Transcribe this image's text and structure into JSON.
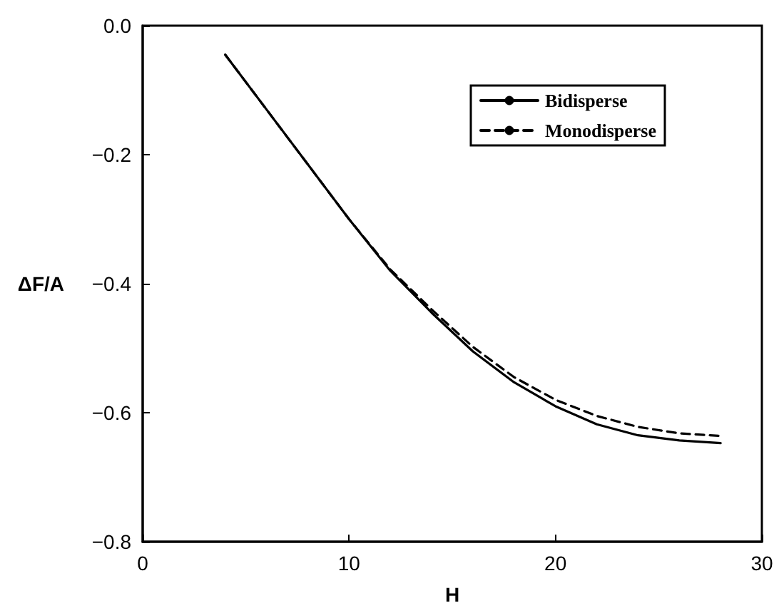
{
  "chart_data": {
    "type": "line",
    "xlabel": "H",
    "ylabel": "ΔF/A",
    "xlim": [
      0,
      30
    ],
    "xticks": [
      0,
      10,
      20,
      30
    ],
    "ylim": [
      -0.8,
      0.0
    ],
    "yticks": [
      {
        "value": -0.8,
        "label": "−0.8"
      },
      {
        "value": -0.6,
        "label": "−0.6"
      },
      {
        "value": -0.4,
        "label": "−0.4"
      },
      {
        "value": -0.2,
        "label": "−0.2"
      },
      {
        "value": 0,
        "label": "0.0"
      }
    ],
    "grid": false,
    "legend": "top right",
    "marker": "none",
    "series": [
      {
        "name": "Bidisperse",
        "color": "#000000",
        "line_style": "solid",
        "x": [
          4,
          6,
          8,
          10,
          12,
          14,
          16,
          18,
          20,
          22,
          24,
          26,
          28
        ],
        "values": [
          -0.045,
          -0.13,
          -0.215,
          -0.3,
          -0.38,
          -0.445,
          -0.505,
          -0.553,
          -0.59,
          -0.618,
          -0.635,
          -0.643,
          -0.647
        ]
      },
      {
        "name": "Monodisperse",
        "color": "#000000",
        "line_style": "dashed",
        "x": [
          4,
          6,
          8,
          10,
          12,
          14,
          16,
          18,
          20,
          22,
          24,
          26,
          28
        ],
        "values": [
          -0.045,
          -0.13,
          -0.215,
          -0.3,
          -0.378,
          -0.44,
          -0.498,
          -0.545,
          -0.58,
          -0.605,
          -0.622,
          -0.632,
          -0.636
        ]
      }
    ]
  }
}
